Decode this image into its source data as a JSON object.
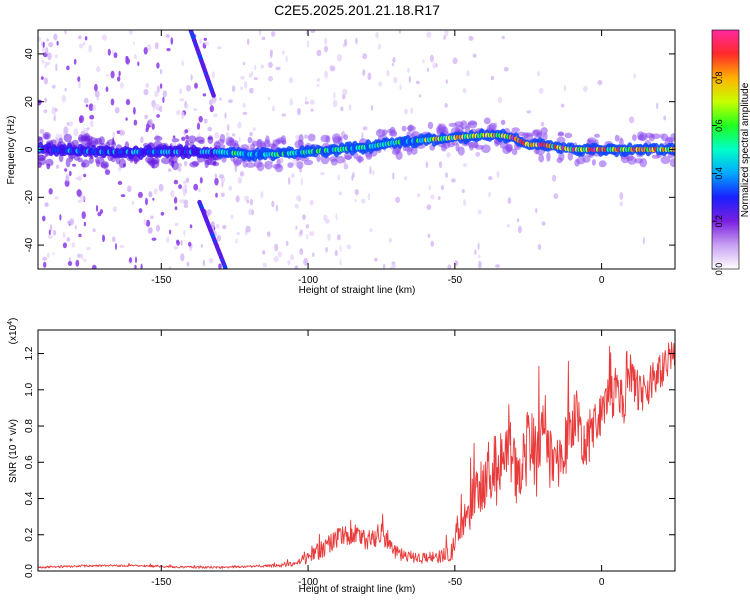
{
  "title": "C2E5.2025.201.21.18.R17",
  "colors": {
    "snr_line": "#e83a3a",
    "colormap": [
      "#ffffff",
      "#d9b3f5",
      "#a25ce8",
      "#7a1fe0",
      "#3a10f0",
      "#0a44ff",
      "#00c8ff",
      "#00ffb0",
      "#30ff30",
      "#c8ff00",
      "#ffe600",
      "#ff8c00",
      "#ff2a2a",
      "#ff2aa0"
    ]
  },
  "chart_data": [
    {
      "type": "heatmap",
      "title": "C2E5.2025.201.21.18.R17",
      "xlabel": "Height of straight line (km)",
      "ylabel": "Frequency (Hz)",
      "xlim": [
        -192,
        25
      ],
      "ylim": [
        -50,
        50
      ],
      "xticks": [
        -150,
        -100,
        -50,
        0
      ],
      "yticks": [
        -40,
        -20,
        0,
        20,
        40
      ],
      "colorbar": {
        "label": "Normalized spectral amplitude",
        "range": [
          0,
          1
        ],
        "ticks": [
          0.0,
          0.2,
          0.4,
          0.6,
          0.8
        ]
      },
      "ridge": {
        "x": [
          -192,
          -170,
          -150,
          -130,
          -120,
          -110,
          -100,
          -90,
          -80,
          -70,
          -60,
          -50,
          -40,
          -35,
          -30,
          -27,
          -25,
          -20,
          -15,
          -10,
          -5,
          0,
          5,
          10,
          15,
          20,
          25
        ],
        "freq_hz": [
          0,
          -1,
          -1,
          -1,
          -2,
          -2,
          -1,
          0,
          1,
          3,
          4,
          5,
          6,
          6,
          5,
          3,
          2,
          2,
          1,
          0,
          0,
          0,
          0,
          0,
          0,
          0,
          0
        ]
      },
      "streaks": [
        {
          "x": [
            -140,
            -132
          ],
          "freq_hz": [
            50,
            22
          ]
        },
        {
          "x": [
            -137,
            -128
          ],
          "freq_hz": [
            -22,
            -50
          ]
        }
      ]
    },
    {
      "type": "line",
      "title": "",
      "xlabel": "Height of straight line (km)",
      "ylabel": "SNR (10 * v/v)",
      "y_multiplier": "(x10^4)",
      "y_multiplier_base": "(x10",
      "y_multiplier_exp": "4",
      "y_multiplier_close": ")",
      "xlim": [
        -192,
        25
      ],
      "ylim": [
        0,
        1.33
      ],
      "xticks": [
        -150,
        -100,
        -50,
        0
      ],
      "yticks": [
        0.0,
        0.2,
        0.4,
        0.6,
        0.8,
        1.0,
        1.2
      ],
      "series": [
        {
          "x": [
            -192,
            -180,
            -170,
            -160,
            -150,
            -140,
            -130,
            -120,
            -110,
            -105,
            -100,
            -95,
            -90,
            -85,
            -80,
            -75,
            -70,
            -65,
            -60,
            -55,
            -52,
            -50,
            -48,
            -45,
            -42,
            -40,
            -38,
            -35,
            -32,
            -30,
            -28,
            -25,
            -22,
            -20,
            -18,
            -15,
            -12,
            -10,
            -8,
            -5,
            -2,
            0,
            3,
            5,
            8,
            10,
            12,
            15,
            18,
            20,
            22,
            25
          ],
          "values": [
            0.02,
            0.025,
            0.03,
            0.03,
            0.025,
            0.02,
            0.02,
            0.025,
            0.03,
            0.04,
            0.07,
            0.12,
            0.18,
            0.22,
            0.17,
            0.21,
            0.1,
            0.07,
            0.07,
            0.08,
            0.1,
            0.14,
            0.25,
            0.35,
            0.42,
            0.48,
            0.6,
            0.55,
            0.7,
            0.62,
            0.45,
            0.72,
            0.6,
            0.85,
            0.65,
            0.55,
            0.72,
            0.85,
            0.8,
            0.7,
            0.85,
            0.88,
            0.95,
            1.0,
            0.92,
            1.08,
            1.0,
            1.0,
            1.05,
            1.1,
            1.15,
            1.2
          ],
          "noise": [
            0.006,
            0.006,
            0.006,
            0.006,
            0.006,
            0.006,
            0.006,
            0.006,
            0.01,
            0.015,
            0.03,
            0.05,
            0.06,
            0.07,
            0.06,
            0.06,
            0.04,
            0.03,
            0.03,
            0.04,
            0.05,
            0.07,
            0.1,
            0.13,
            0.15,
            0.18,
            0.2,
            0.2,
            0.2,
            0.2,
            0.2,
            0.2,
            0.2,
            0.2,
            0.2,
            0.18,
            0.18,
            0.16,
            0.15,
            0.15,
            0.14,
            0.14,
            0.13,
            0.13,
            0.12,
            0.12,
            0.12,
            0.11,
            0.11,
            0.1,
            0.1,
            0.08
          ]
        }
      ]
    }
  ]
}
